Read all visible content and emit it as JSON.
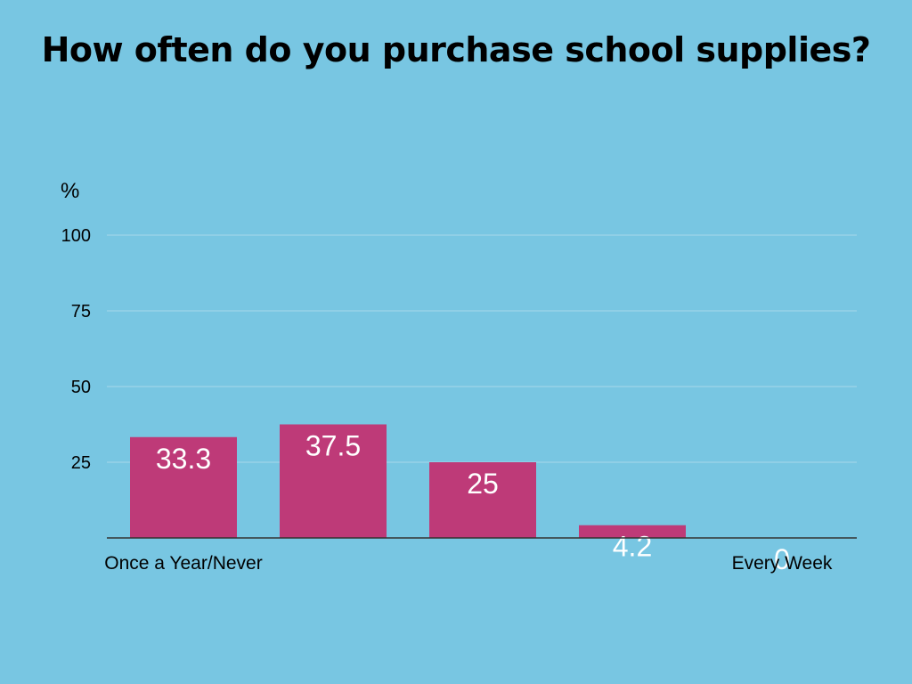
{
  "background_color": "#78C6E2",
  "chart_data": {
    "type": "bar",
    "title": "How often do you purchase school supplies?",
    "ylabel": "%",
    "xlabel": "",
    "categories": [
      "Once a Year/Never",
      "",
      "",
      "",
      "Every Week"
    ],
    "values": [
      33.3,
      37.5,
      25,
      4.2,
      0
    ],
    "value_labels": [
      "33.3",
      "37.5",
      "25",
      "4.2",
      "0"
    ],
    "ylim": [
      0,
      100
    ],
    "yticks": [
      25,
      50,
      75,
      100
    ],
    "ytick_labels": [
      "25",
      "50",
      "75",
      "100"
    ],
    "grid": true,
    "legend": "none",
    "colors": {
      "bar": "#BE3A78",
      "value_label": "#FFFFFF",
      "grid": "#A7D8EA",
      "axis": "#333333",
      "text": "#000000"
    }
  }
}
